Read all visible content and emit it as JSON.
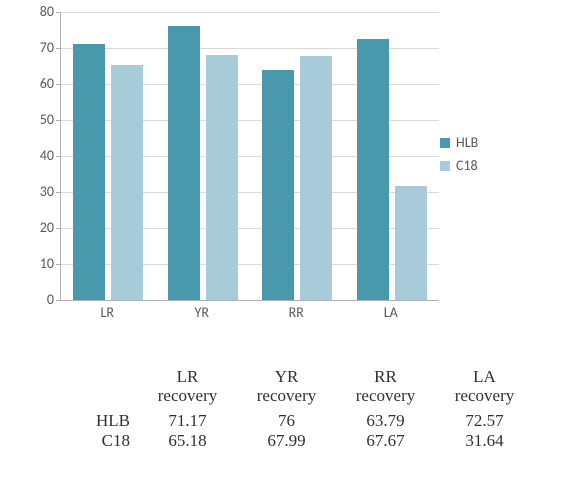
{
  "chart": {
    "type": "bar",
    "categories": [
      "LR",
      "YR",
      "RR",
      "LA"
    ],
    "series": [
      {
        "name": "HLB",
        "color": "#4a98ab",
        "values": [
          71.17,
          76,
          63.79,
          72.57
        ]
      },
      {
        "name": "C18",
        "color": "#a8cbd9",
        "values": [
          65.18,
          67.99,
          67.67,
          31.64
        ]
      }
    ],
    "ylim": [
      0,
      80
    ],
    "ytick_step": 10,
    "background_color": "#ffffff",
    "grid_color": "#d9d9d9",
    "axis_color": "#b0b0b0",
    "label_color": "#595959",
    "label_fontsize": 14,
    "bar_group_gap_ratio": 0.06,
    "bar_width_ratio": 0.34
  },
  "legend": {
    "items": [
      {
        "label": "HLB",
        "color": "#4a98ab"
      },
      {
        "label": "C18",
        "color": "#a8cbd9"
      }
    ]
  },
  "table": {
    "col_headers_line1": [
      "LR",
      "YR",
      "RR",
      "LA"
    ],
    "col_headers_line2": [
      "recovery",
      "recovery",
      "recovery",
      "recovery"
    ],
    "rows": [
      {
        "label": "HLB",
        "cells": [
          "71.17",
          "76",
          "63.79",
          "72.57"
        ]
      },
      {
        "label": "C18",
        "cells": [
          "65.18",
          "67.99",
          "67.67",
          "31.64"
        ]
      }
    ]
  }
}
